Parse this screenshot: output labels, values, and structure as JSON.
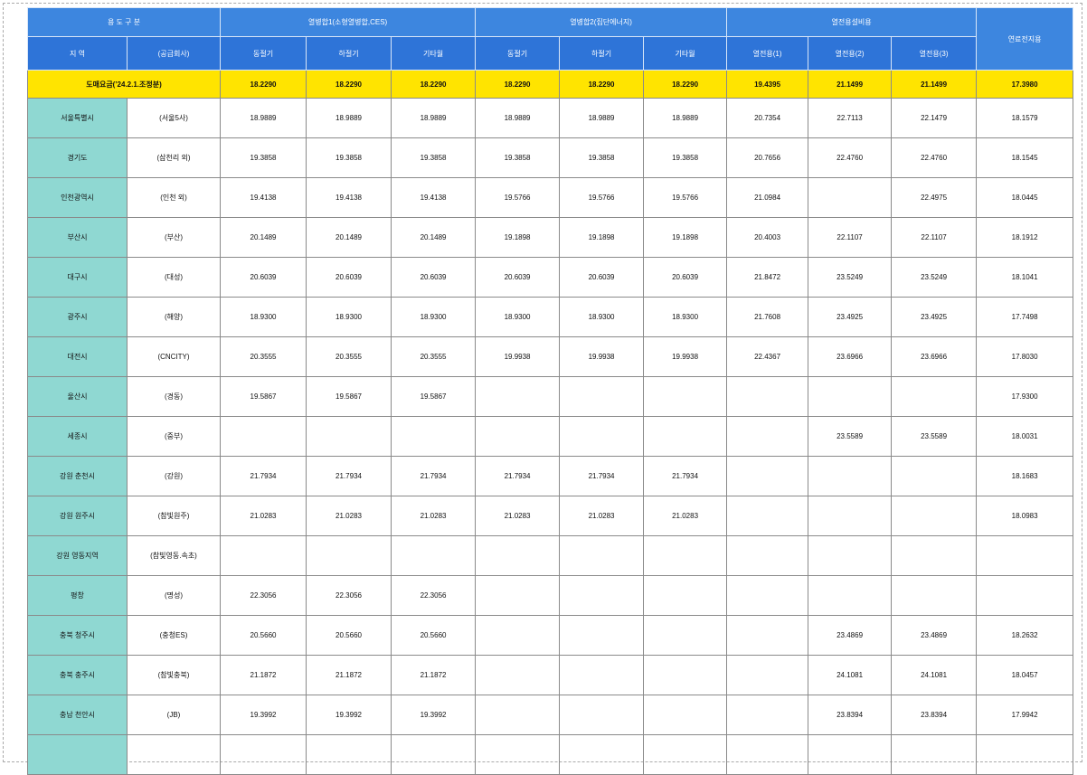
{
  "header": {
    "groups": [
      "용 도 구 분",
      "열병합1(소형열병합,CES)",
      "열병합2(집단에너지)",
      "열전용설비용",
      "연료전지용"
    ],
    "subheaders": [
      "지 역",
      "(공급회사)",
      "동절기",
      "하절기",
      "기타월",
      "동절기",
      "하절기",
      "기타월",
      "열전용(1)",
      "열전용(2)",
      "열전용(3)"
    ]
  },
  "wholesale": {
    "label": "도매요금(’24.2.1.조정분)",
    "values": [
      "18.2290",
      "18.2290",
      "18.2290",
      "18.2290",
      "18.2290",
      "18.2290",
      "19.4395",
      "21.1499",
      "21.1499",
      "17.3980"
    ]
  },
  "rows": [
    {
      "region": "서울특별시",
      "company": "(서울5사)",
      "values": [
        "18.9889",
        "18.9889",
        "18.9889",
        "18.9889",
        "18.9889",
        "18.9889",
        "20.7354",
        "22.7113",
        "22.1479",
        "18.1579"
      ]
    },
    {
      "region": "경기도",
      "company": "(삼천리 외)",
      "values": [
        "19.3858",
        "19.3858",
        "19.3858",
        "19.3858",
        "19.3858",
        "19.3858",
        "20.7656",
        "22.4760",
        "22.4760",
        "18.1545"
      ]
    },
    {
      "region": "인천광역시",
      "company": "(인천 외)",
      "values": [
        "19.4138",
        "19.4138",
        "19.4138",
        "19.5766",
        "19.5766",
        "19.5766",
        "21.0984",
        null,
        "22.4975",
        "18.0445"
      ]
    },
    {
      "region": "부산시",
      "company": "(부산)",
      "values": [
        "20.1489",
        "20.1489",
        "20.1489",
        "19.1898",
        "19.1898",
        "19.1898",
        "20.4003",
        "22.1107",
        "22.1107",
        "18.1912"
      ]
    },
    {
      "region": "대구시",
      "company": "(대성)",
      "values": [
        "20.6039",
        "20.6039",
        "20.6039",
        "20.6039",
        "20.6039",
        "20.6039",
        "21.8472",
        "23.5249",
        "23.5249",
        "18.1041"
      ]
    },
    {
      "region": "광주시",
      "company": "(해양)",
      "values": [
        "18.9300",
        "18.9300",
        "18.9300",
        "18.9300",
        "18.9300",
        "18.9300",
        "21.7608",
        "23.4925",
        "23.4925",
        "17.7498"
      ]
    },
    {
      "region": "대전시",
      "company": "(CNCITY)",
      "values": [
        "20.3555",
        "20.3555",
        "20.3555",
        "19.9938",
        "19.9938",
        "19.9938",
        "22.4367",
        "23.6966",
        "23.6966",
        "17.8030"
      ]
    },
    {
      "region": "울산시",
      "company": "(경동)",
      "values": [
        "19.5867",
        "19.5867",
        "19.5867",
        null,
        null,
        null,
        null,
        null,
        null,
        "17.9300"
      ]
    },
    {
      "region": "세종시",
      "company": "(중부)",
      "values": [
        null,
        null,
        null,
        null,
        null,
        null,
        null,
        "23.5589",
        "23.5589",
        "18.0031"
      ]
    },
    {
      "region": "강원 춘천시",
      "company": "(강원)",
      "values": [
        "21.7934",
        "21.7934",
        "21.7934",
        "21.7934",
        "21.7934",
        "21.7934",
        null,
        null,
        null,
        "18.1683"
      ]
    },
    {
      "region": "강원 원주시",
      "company": "(참빛원주)",
      "values": [
        "21.0283",
        "21.0283",
        "21.0283",
        "21.0283",
        "21.0283",
        "21.0283",
        null,
        null,
        null,
        "18.0983"
      ]
    },
    {
      "region": "강원 영동지역",
      "company": "(참빛영동.속초)",
      "values": [
        null,
        null,
        null,
        null,
        null,
        null,
        null,
        null,
        null,
        null
      ]
    },
    {
      "region": "평창",
      "company": "(명성)",
      "values": [
        "22.3056",
        "22.3056",
        "22.3056",
        null,
        null,
        null,
        null,
        null,
        null,
        null
      ]
    },
    {
      "region": "충북 청주시",
      "company": "(충청ES)",
      "values": [
        "20.5660",
        "20.5660",
        "20.5660",
        null,
        null,
        null,
        null,
        "23.4869",
        "23.4869",
        "18.2632"
      ]
    },
    {
      "region": "충북 충주시",
      "company": "(참빛충북)",
      "values": [
        "21.1872",
        "21.1872",
        "21.1872",
        null,
        null,
        null,
        null,
        "24.1081",
        "24.1081",
        "18.0457"
      ]
    },
    {
      "region": "충남 천안시",
      "company": "(JB)",
      "values": [
        "19.3992",
        "19.3992",
        "19.3992",
        null,
        null,
        null,
        null,
        "23.8394",
        "23.8394",
        "17.9942"
      ]
    }
  ]
}
